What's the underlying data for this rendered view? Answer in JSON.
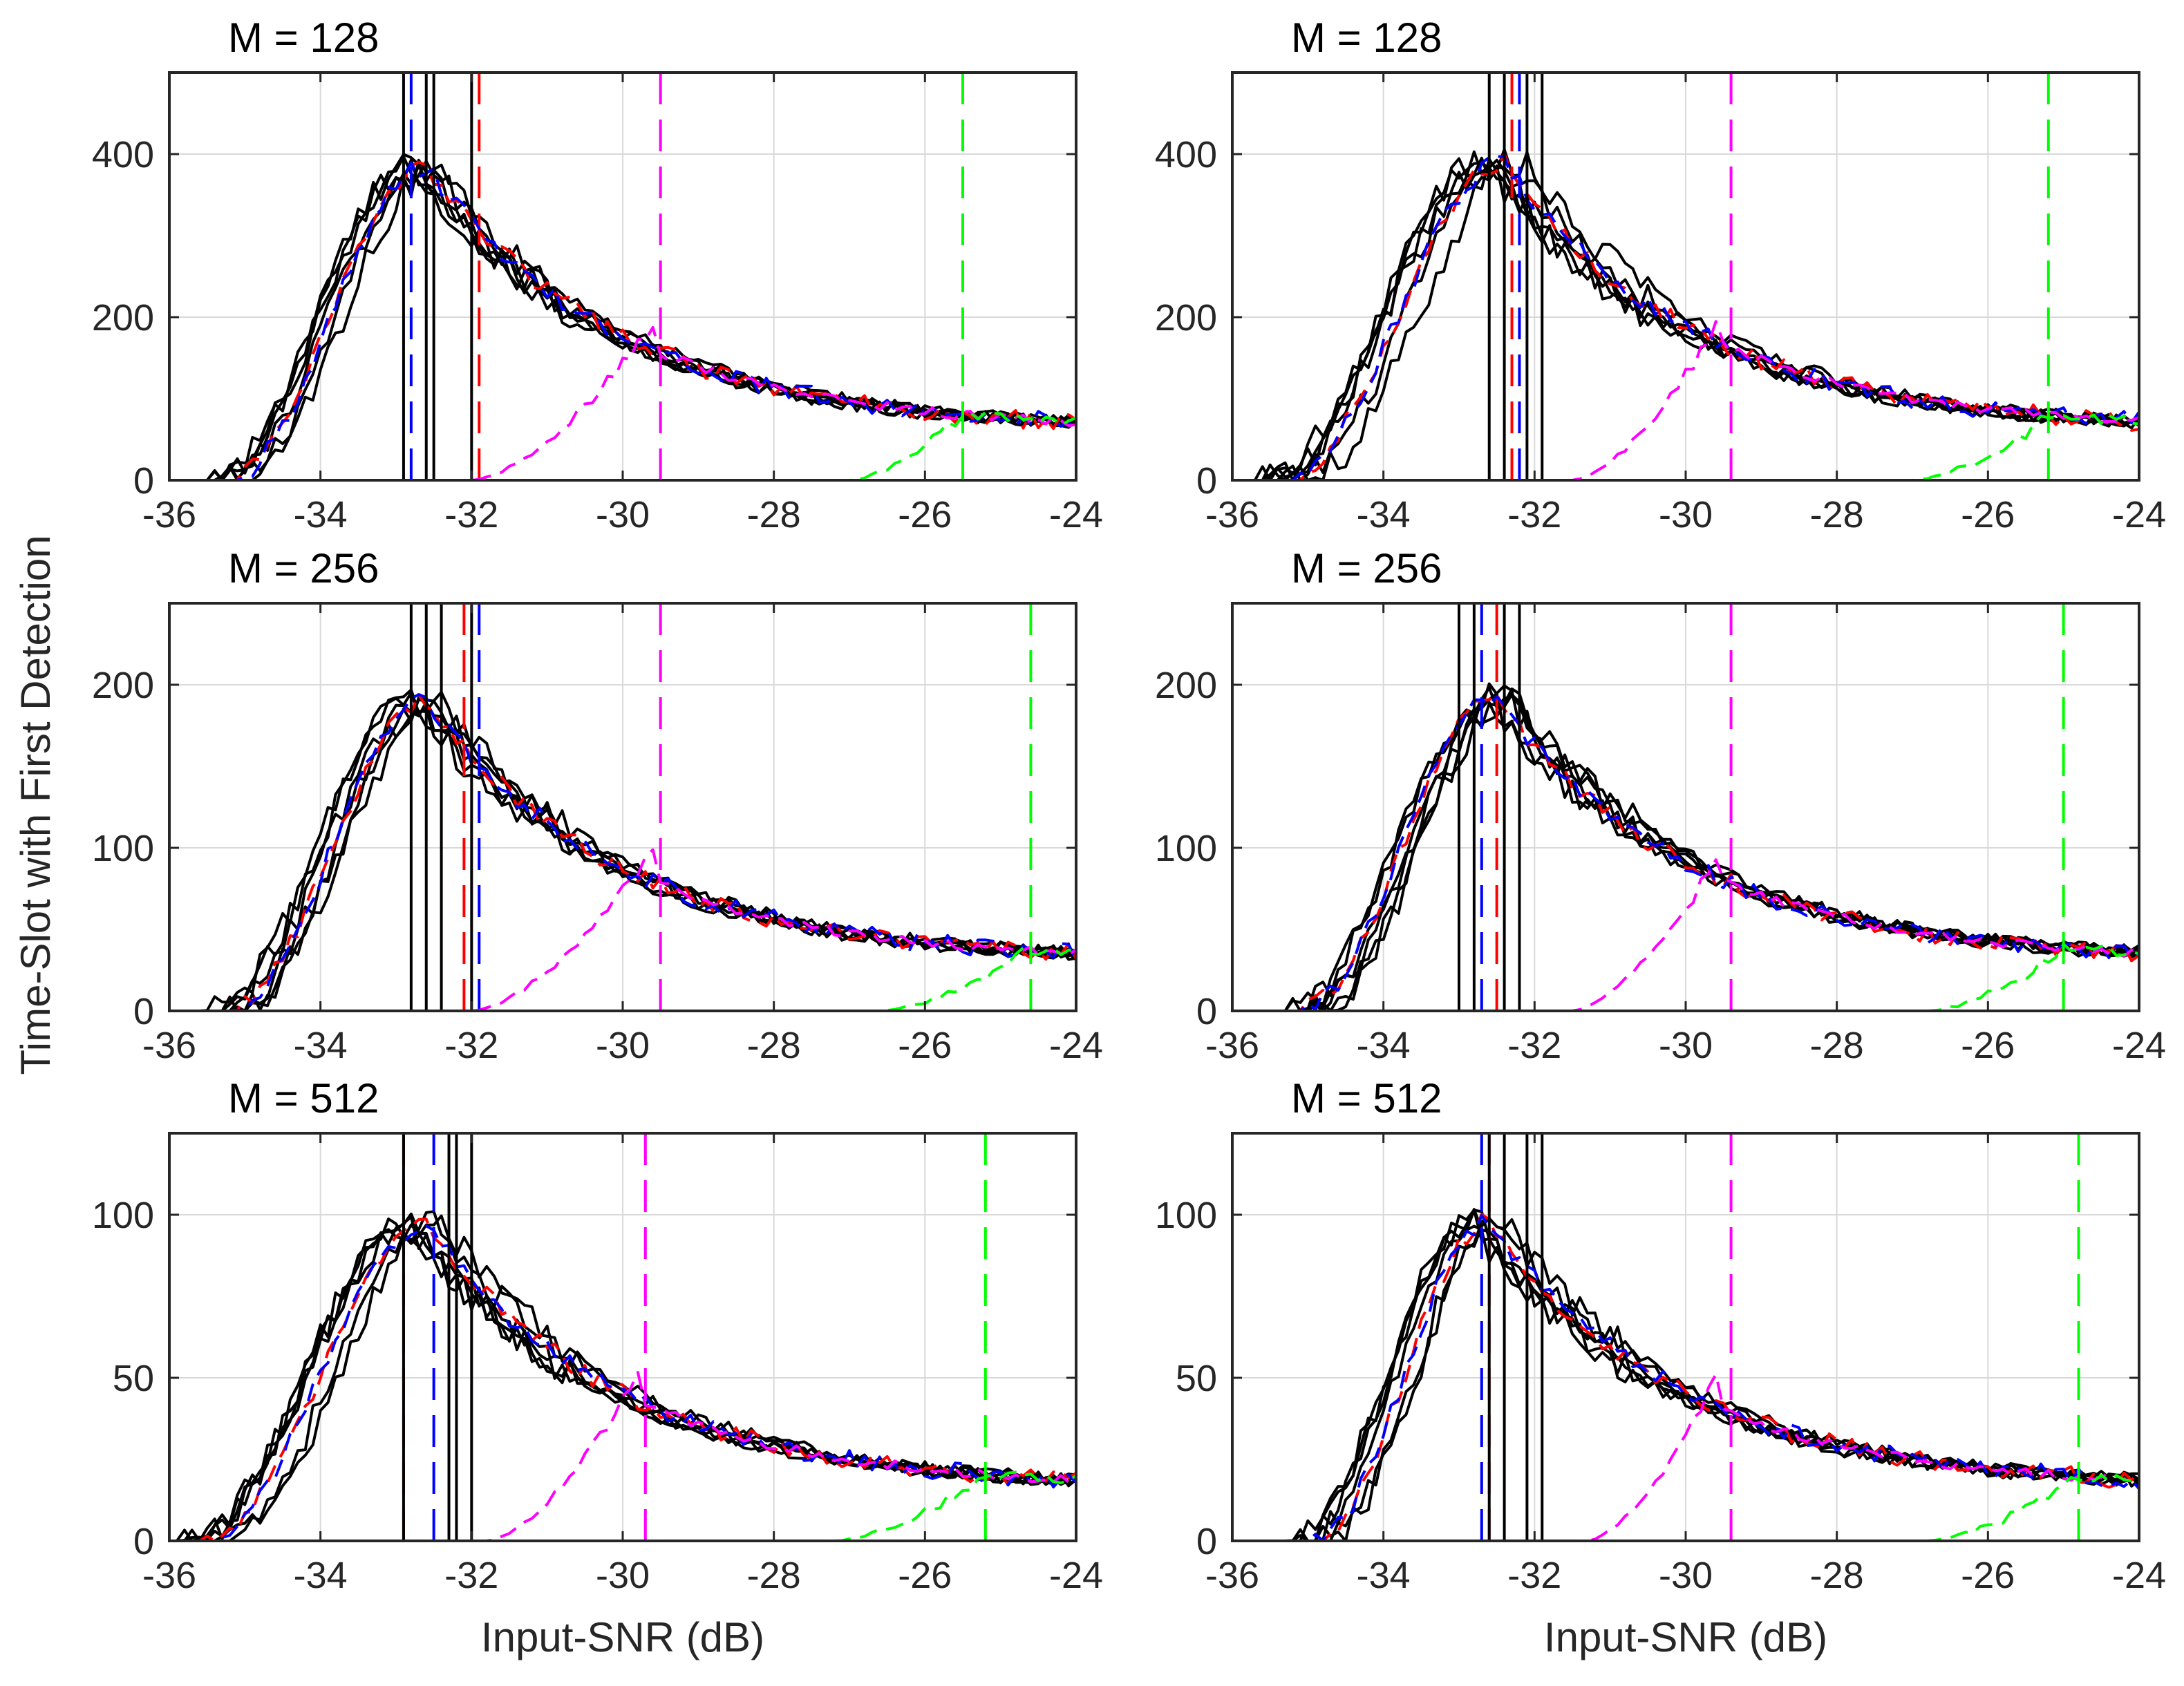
{
  "figure": {
    "ylabel": "Time-Slot with First Detection",
    "xlabel": "Input-SNR (dB)"
  },
  "colors": {
    "black": "#000000",
    "red": "#ff0000",
    "blue": "#0000ff",
    "magenta": "#ff00ff",
    "green": "#00ff00",
    "grid": "#d9d9d9"
  },
  "chart_data": [
    {
      "type": "line",
      "title": "M = 128",
      "position": "top-left",
      "xlim": [
        -36,
        -24
      ],
      "xticks": [
        "-36",
        "-34",
        "-32",
        "-30",
        "-28",
        "-26",
        "-24"
      ],
      "ylim": [
        0,
        500
      ],
      "yticks": [
        "0",
        "200",
        "400"
      ],
      "xlabel": "",
      "ylabel": "",
      "grid": true,
      "curve": {
        "start": -35.3,
        "peak_x": -32.6,
        "peak_y": 385,
        "tail_y": 60
      },
      "black_vlines": [
        -32.9,
        -32.6,
        -32.5,
        -32.0
      ],
      "series": [
        {
          "name": "black",
          "style": "solid",
          "count": 6
        },
        {
          "name": "red",
          "style": "dashed",
          "start": -35.0,
          "vline": -31.9
        },
        {
          "name": "blue",
          "style": "dashed",
          "start": -35.2,
          "vline": -32.8
        },
        {
          "name": "magenta",
          "style": "dashed",
          "start": -32.0,
          "end": -29.5,
          "reach_y": 205,
          "vline": -29.5
        },
        {
          "name": "green",
          "style": "dashed",
          "start": -27.0,
          "end": -25.5,
          "reach_y": 80,
          "vline": -25.5
        }
      ]
    },
    {
      "type": "line",
      "title": "M = 128",
      "position": "top-right",
      "xlim": [
        -36,
        -24
      ],
      "xticks": [
        "-36",
        "-34",
        "-32",
        "-30",
        "-28",
        "-26",
        "-24"
      ],
      "ylim": [
        0,
        500
      ],
      "yticks": [
        "0",
        "200",
        "400"
      ],
      "xlabel": "",
      "ylabel": "",
      "grid": true,
      "curve": {
        "start": -35.4,
        "peak_x": -32.4,
        "peak_y": 390,
        "tail_y": 60
      },
      "black_vlines": [
        -32.6,
        -32.4,
        -32.1,
        -31.9
      ],
      "series": [
        {
          "name": "black",
          "style": "solid",
          "count": 6
        },
        {
          "name": "red",
          "style": "dashed",
          "start": -35.0,
          "vline": -32.3
        },
        {
          "name": "blue",
          "style": "dashed",
          "start": -35.2,
          "vline": -32.2
        },
        {
          "name": "magenta",
          "style": "dashed",
          "start": -31.5,
          "end": -29.5,
          "reach_y": 205,
          "vline": -29.4
        },
        {
          "name": "green",
          "style": "dashed",
          "start": -27.0,
          "end": -25.2,
          "reach_y": 78,
          "vline": -25.2
        }
      ]
    },
    {
      "type": "line",
      "title": "M = 256",
      "position": "middle-left",
      "xlim": [
        -36,
        -24
      ],
      "xticks": [
        "-36",
        "-34",
        "-32",
        "-30",
        "-28",
        "-26",
        "-24"
      ],
      "ylim": [
        0,
        250
      ],
      "yticks": [
        "0",
        "100",
        "200"
      ],
      "xlabel": "",
      "ylabel": "",
      "grid": true,
      "curve": {
        "start": -35.3,
        "peak_x": -32.6,
        "peak_y": 190,
        "tail_y": 30
      },
      "black_vlines": [
        -32.8,
        -32.6,
        -32.4,
        -32.0
      ],
      "series": [
        {
          "name": "black",
          "style": "solid",
          "count": 6
        },
        {
          "name": "red",
          "style": "dashed",
          "start": -35.0,
          "vline": -32.1
        },
        {
          "name": "blue",
          "style": "dashed",
          "start": -35.1,
          "vline": -31.9
        },
        {
          "name": "magenta",
          "style": "dashed",
          "start": -32.0,
          "end": -29.5,
          "reach_y": 105,
          "vline": -29.5
        },
        {
          "name": "green",
          "style": "dashed",
          "start": -26.6,
          "end": -24.6,
          "reach_y": 38,
          "vline": -24.6
        }
      ]
    },
    {
      "type": "line",
      "title": "M = 256",
      "position": "middle-right",
      "xlim": [
        -36,
        -24
      ],
      "xticks": [
        "-36",
        "-34",
        "-32",
        "-30",
        "-28",
        "-26",
        "-24"
      ],
      "ylim": [
        0,
        250
      ],
      "yticks": [
        "0",
        "100",
        "200"
      ],
      "xlabel": "",
      "ylabel": "",
      "grid": true,
      "curve": {
        "start": -35.2,
        "peak_x": -32.5,
        "peak_y": 192,
        "tail_y": 30
      },
      "black_vlines": [
        -33.0,
        -32.8,
        -32.4,
        -32.2
      ],
      "series": [
        {
          "name": "black",
          "style": "solid",
          "count": 6
        },
        {
          "name": "red",
          "style": "dashed",
          "start": -35.0,
          "vline": -32.5
        },
        {
          "name": "blue",
          "style": "dashed",
          "start": -35.0,
          "vline": -32.7
        },
        {
          "name": "magenta",
          "style": "dashed",
          "start": -31.5,
          "end": -29.5,
          "reach_y": 100,
          "vline": -29.4
        },
        {
          "name": "green",
          "style": "dashed",
          "start": -26.8,
          "end": -25.0,
          "reach_y": 38,
          "vline": -25.0
        }
      ]
    },
    {
      "type": "line",
      "title": "M = 512",
      "position": "bottom-left",
      "xlim": [
        -36,
        -24
      ],
      "xticks": [
        "-36",
        "-34",
        "-32",
        "-30",
        "-28",
        "-26",
        "-24"
      ],
      "ylim": [
        0,
        125
      ],
      "yticks": [
        "0",
        "50",
        "100"
      ],
      "xlabel": "Input-SNR (dB)",
      "ylabel": "",
      "grid": true,
      "curve": {
        "start": -35.6,
        "peak_x": -32.6,
        "peak_y": 97,
        "tail_y": 16
      },
      "black_vlines": [
        -32.9,
        -32.3,
        -32.2,
        -32.0
      ],
      "series": [
        {
          "name": "black",
          "style": "solid",
          "count": 6
        },
        {
          "name": "red",
          "style": "dashed",
          "start": -35.5,
          "vline": -32.9
        },
        {
          "name": "blue",
          "style": "dashed",
          "start": -35.3,
          "vline": -32.5
        },
        {
          "name": "magenta",
          "style": "dashed",
          "start": -31.8,
          "end": -29.7,
          "reach_y": 55,
          "vline": -29.7
        },
        {
          "name": "green",
          "style": "dashed",
          "start": -27.2,
          "end": -25.2,
          "reach_y": 20,
          "vline": -25.2
        }
      ]
    },
    {
      "type": "line",
      "title": "M = 512",
      "position": "bottom-right",
      "xlim": [
        -36,
        -24
      ],
      "xticks": [
        "-36",
        "-34",
        "-32",
        "-30",
        "-28",
        "-26",
        "-24"
      ],
      "ylim": [
        0,
        125
      ],
      "yticks": [
        "0",
        "50",
        "100"
      ],
      "xlabel": "Input-SNR (dB)",
      "ylabel": "",
      "grid": true,
      "curve": {
        "start": -35.0,
        "peak_x": -32.6,
        "peak_y": 98,
        "tail_y": 16
      },
      "black_vlines": [
        -32.6,
        -32.4,
        -32.1,
        -31.9
      ],
      "series": [
        {
          "name": "black",
          "style": "solid",
          "count": 6
        },
        {
          "name": "red",
          "style": "dashed",
          "start": -34.9,
          "vline": -32.6
        },
        {
          "name": "blue",
          "style": "dashed",
          "start": -34.9,
          "vline": -32.7
        },
        {
          "name": "magenta",
          "style": "dashed",
          "start": -31.3,
          "end": -29.5,
          "reach_y": 55,
          "vline": -29.4
        },
        {
          "name": "green",
          "style": "dashed",
          "start": -26.8,
          "end": -24.8,
          "reach_y": 20,
          "vline": -24.8
        }
      ]
    }
  ]
}
